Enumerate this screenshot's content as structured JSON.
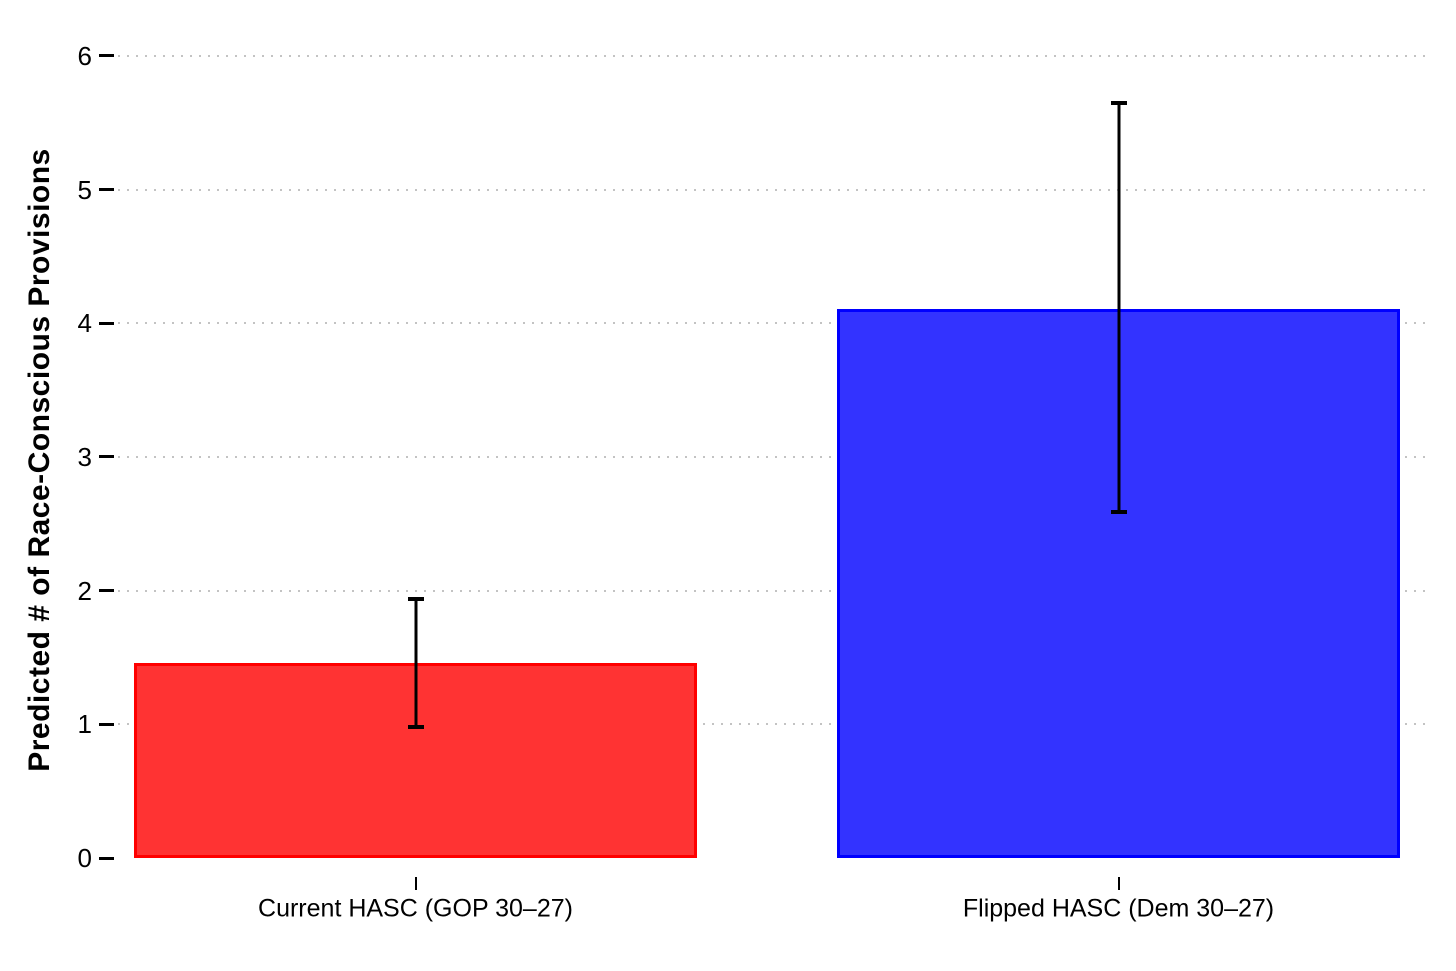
{
  "chart_data": {
    "type": "bar",
    "title": "",
    "xlabel": "",
    "ylabel": "Predicted # of Race-Conscious Provisions",
    "categories": [
      "Current HASC (GOP 30–27)",
      "Flipped HASC (Dem 30–27)"
    ],
    "values": [
      1.46,
      4.11
    ],
    "error_bars": [
      {
        "low": 0.98,
        "high": 1.94
      },
      {
        "low": 2.59,
        "high": 5.65
      }
    ],
    "bar_fill_colors": [
      "#FF3333",
      "#3333FF"
    ],
    "bar_border_colors": [
      "#FF0000",
      "#0000FF"
    ],
    "ylim": [
      0,
      6
    ],
    "yticks": [
      0,
      1,
      2,
      3,
      4,
      5,
      6
    ],
    "gridlines_at": [
      1,
      2,
      3,
      4,
      5,
      6
    ],
    "grid_style": "dotted horizontal",
    "legend": "none"
  },
  "colors": {
    "background": "#FFFFFF",
    "grid": "#C3C3C3",
    "axis_text": "#000000",
    "error_bar": "#000000"
  }
}
